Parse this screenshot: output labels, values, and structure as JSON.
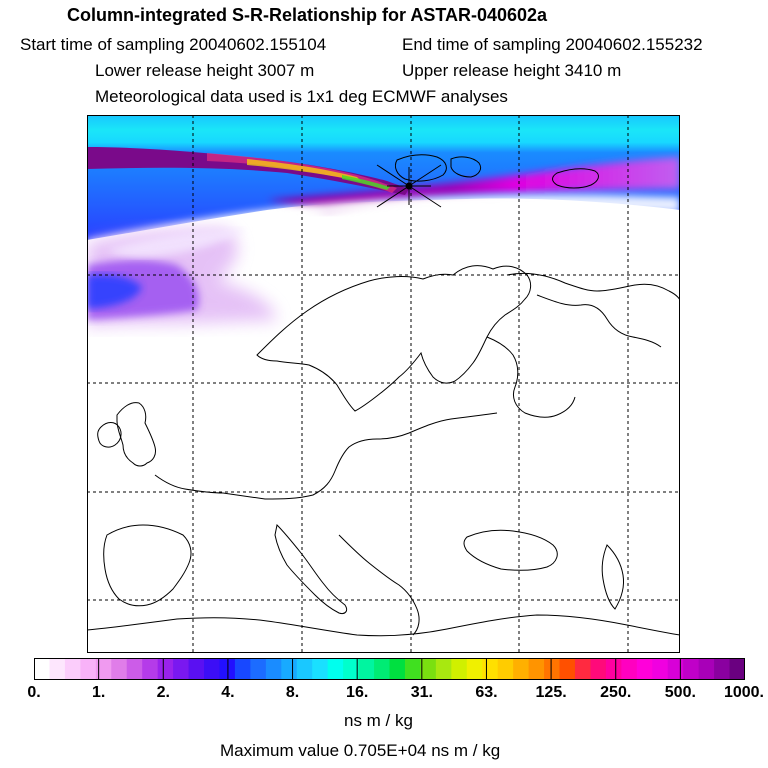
{
  "header": {
    "title": "Column-integrated S-R-Relationship for ASTAR-040602a",
    "start_time": "Start time of sampling 20040602.155104",
    "end_time": "End time of sampling 20040602.155232",
    "lower_height": "Lower release height 3007 m",
    "upper_height": "Upper release height 3410 m",
    "met_data": "Meteorological data used is 1x1 deg ECMWF analyses"
  },
  "colorbar": {
    "ticks": [
      "0.",
      "1.",
      "2.",
      "4.",
      "8.",
      "16.",
      "31.",
      "63.",
      "125.",
      "250.",
      "500.",
      "1000."
    ],
    "colors": [
      "#ffffff",
      "#fde6fd",
      "#fbcdfb",
      "#f8b2f8",
      "#f09af0",
      "#e07de9",
      "#cc5ce8",
      "#b53be9",
      "#9a22ec",
      "#7a18f0",
      "#5a10f2",
      "#3c0ef6",
      "#2210ff",
      "#1848ff",
      "#1c6cff",
      "#1a8cff",
      "#18aaff",
      "#1ac8ff",
      "#1ae0ff",
      "#00ffee",
      "#00ffcc",
      "#00f5a0",
      "#00ec74",
      "#00e040",
      "#40e020",
      "#7ae010",
      "#a8e810",
      "#d0f000",
      "#f0f000",
      "#ffe000",
      "#ffcc00",
      "#ffb000",
      "#ff9400",
      "#ff7400",
      "#ff5000",
      "#ff2a40",
      "#ff0a7a",
      "#ff00a0",
      "#ff00c0",
      "#ff00da",
      "#f000e0",
      "#d800d8",
      "#c000c8",
      "#a800b8",
      "#8a00a0",
      "#6a0080"
    ],
    "units": "ns m / kg",
    "max_value": "Maximum value  0.705E+04 ns m / kg"
  }
}
